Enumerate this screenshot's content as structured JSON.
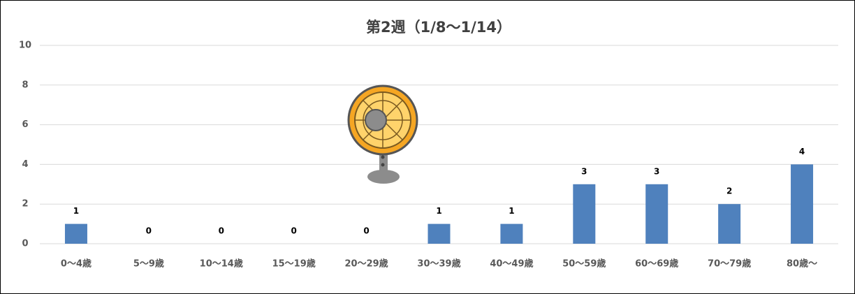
{
  "chart_data": {
    "type": "bar",
    "title": "第2週（1/8～1/14）",
    "categories": [
      "0～4歳",
      "5～9歳",
      "10～14歳",
      "15～19歳",
      "20～29歳",
      "30～39歳",
      "40～49歳",
      "50～59歳",
      "60～69歳",
      "70～79歳",
      "80歳～"
    ],
    "values": [
      1,
      0,
      0,
      0,
      0,
      1,
      1,
      3,
      3,
      2,
      4
    ],
    "color": "#4f81bd",
    "ylim": [
      0,
      10
    ],
    "yticks": [
      0,
      2,
      4,
      6,
      8,
      10
    ],
    "grid": true,
    "data_labels": true
  }
}
